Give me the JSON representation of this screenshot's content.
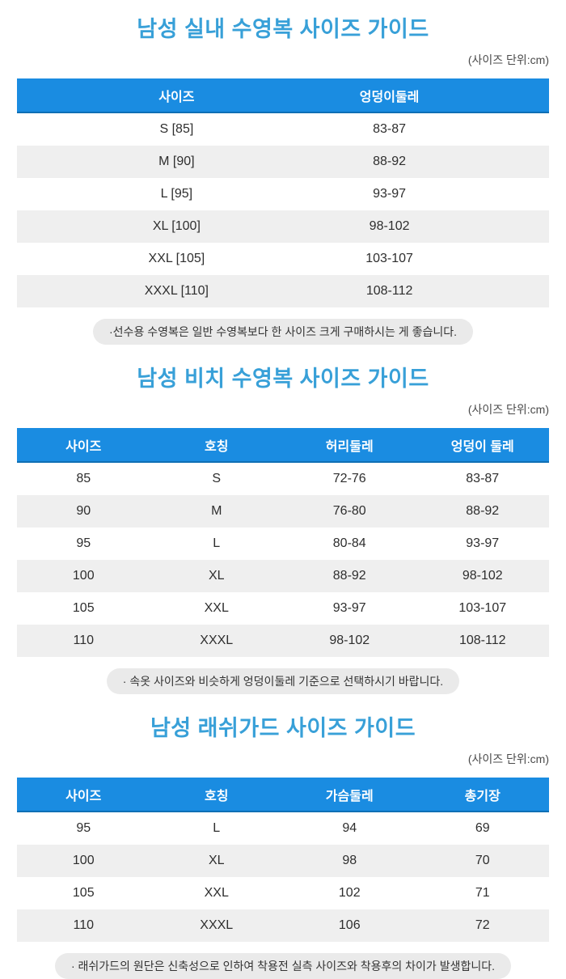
{
  "unit_label": "(사이즈 단위:cm)",
  "colors": {
    "title_blue": "#38a0d8",
    "header_bg": "#1a8ce1",
    "row_alt_bg": "#efefef",
    "note_bg": "#eaeaea"
  },
  "sections": [
    {
      "title": "남성 실내 수영복 사이즈 가이드",
      "columns": [
        "사이즈",
        "엉덩이둘레"
      ],
      "rows": [
        [
          "S [85]",
          "83-87"
        ],
        [
          "M [90]",
          "88-92"
        ],
        [
          "L [95]",
          "93-97"
        ],
        [
          "XL [100]",
          "98-102"
        ],
        [
          "XXL [105]",
          "103-107"
        ],
        [
          "XXXL [110]",
          "108-112"
        ]
      ],
      "note": "·선수용 수영복은 일반 수영복보다 한 사이즈 크게 구매하시는 게 좋습니다."
    },
    {
      "title": "남성 비치 수영복 사이즈 가이드",
      "columns": [
        "사이즈",
        "호칭",
        "허리둘레",
        "엉덩이 둘레"
      ],
      "rows": [
        [
          "85",
          "S",
          "72-76",
          "83-87"
        ],
        [
          "90",
          "M",
          "76-80",
          "88-92"
        ],
        [
          "95",
          "L",
          "80-84",
          "93-97"
        ],
        [
          "100",
          "XL",
          "88-92",
          "98-102"
        ],
        [
          "105",
          "XXL",
          "93-97",
          "103-107"
        ],
        [
          "110",
          "XXXL",
          "98-102",
          "108-112"
        ]
      ],
      "note": "· 속옷 사이즈와 비슷하게 엉덩이둘레 기준으로 선택하시기 바랍니다."
    },
    {
      "title": "남성 래쉬가드 사이즈 가이드",
      "columns": [
        "사이즈",
        "호칭",
        "가슴둘레",
        "총기장"
      ],
      "rows": [
        [
          "95",
          "L",
          "94",
          "69"
        ],
        [
          "100",
          "XL",
          "98",
          "70"
        ],
        [
          "105",
          "XXL",
          "102",
          "71"
        ],
        [
          "110",
          "XXXL",
          "106",
          "72"
        ]
      ],
      "note": "· 래쉬가드의 원단은 신축성으로 인하여 착용전 실측 사이즈와 착용후의 차이가 발생합니다."
    }
  ]
}
